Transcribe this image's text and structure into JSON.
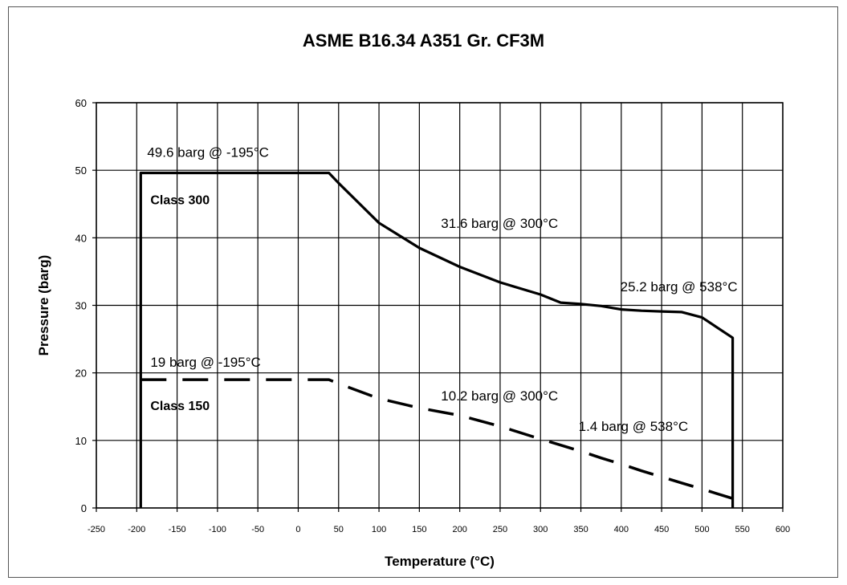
{
  "chart_data": {
    "type": "line",
    "title": "ASME B16.34 A351 Gr. CF3M",
    "xlabel": "Temperature (°C)",
    "ylabel": "Pressure (barg)",
    "xlim": [
      -250,
      600
    ],
    "ylim": [
      0,
      60
    ],
    "x_ticks": [
      -250,
      -200,
      -150,
      -100,
      -50,
      0,
      50,
      100,
      150,
      200,
      250,
      300,
      350,
      400,
      450,
      500,
      550,
      600
    ],
    "y_ticks": [
      0,
      10,
      20,
      30,
      40,
      50,
      60
    ],
    "grid": true,
    "series": [
      {
        "name": "Class 300",
        "style": "solid",
        "x": [
          -195,
          -195,
          38,
          50,
          100,
          150,
          200,
          250,
          300,
          325,
          350,
          375,
          400,
          425,
          450,
          475,
          500,
          538,
          538
        ],
        "y": [
          0,
          49.6,
          49.6,
          48.1,
          42.2,
          38.5,
          35.7,
          33.4,
          31.6,
          30.4,
          30.2,
          29.9,
          29.4,
          29.2,
          29.1,
          29.0,
          28.2,
          25.2,
          0
        ]
      },
      {
        "name": "Class 150",
        "style": "dashed",
        "x": [
          -195,
          38,
          50,
          100,
          150,
          200,
          250,
          300,
          325,
          350,
          375,
          400,
          425,
          450,
          475,
          500,
          538
        ],
        "y": [
          19.0,
          19.0,
          18.4,
          16.2,
          14.8,
          13.7,
          12.1,
          10.2,
          9.3,
          8.4,
          7.4,
          6.5,
          5.5,
          4.6,
          3.7,
          2.8,
          1.4
        ]
      }
    ],
    "annotations": [
      {
        "text": "49.6 barg @ -195°C",
        "x": -195,
        "y": 49.6
      },
      {
        "text": "Class 300",
        "x": -195,
        "y": 49.6
      },
      {
        "text": "31.6 barg @ 300°C",
        "x": 300,
        "y": 31.6
      },
      {
        "text": "25.2 barg @ 538°C",
        "x": 538,
        "y": 25.2
      },
      {
        "text": "19 barg @ -195°C",
        "x": -195,
        "y": 19.0
      },
      {
        "text": "Class 150",
        "x": -195,
        "y": 19.0
      },
      {
        "text": "10.2 barg @ 300°C",
        "x": 300,
        "y": 10.2
      },
      {
        "text": "1.4 barg @ 538°C",
        "x": 538,
        "y": 1.4
      }
    ]
  }
}
